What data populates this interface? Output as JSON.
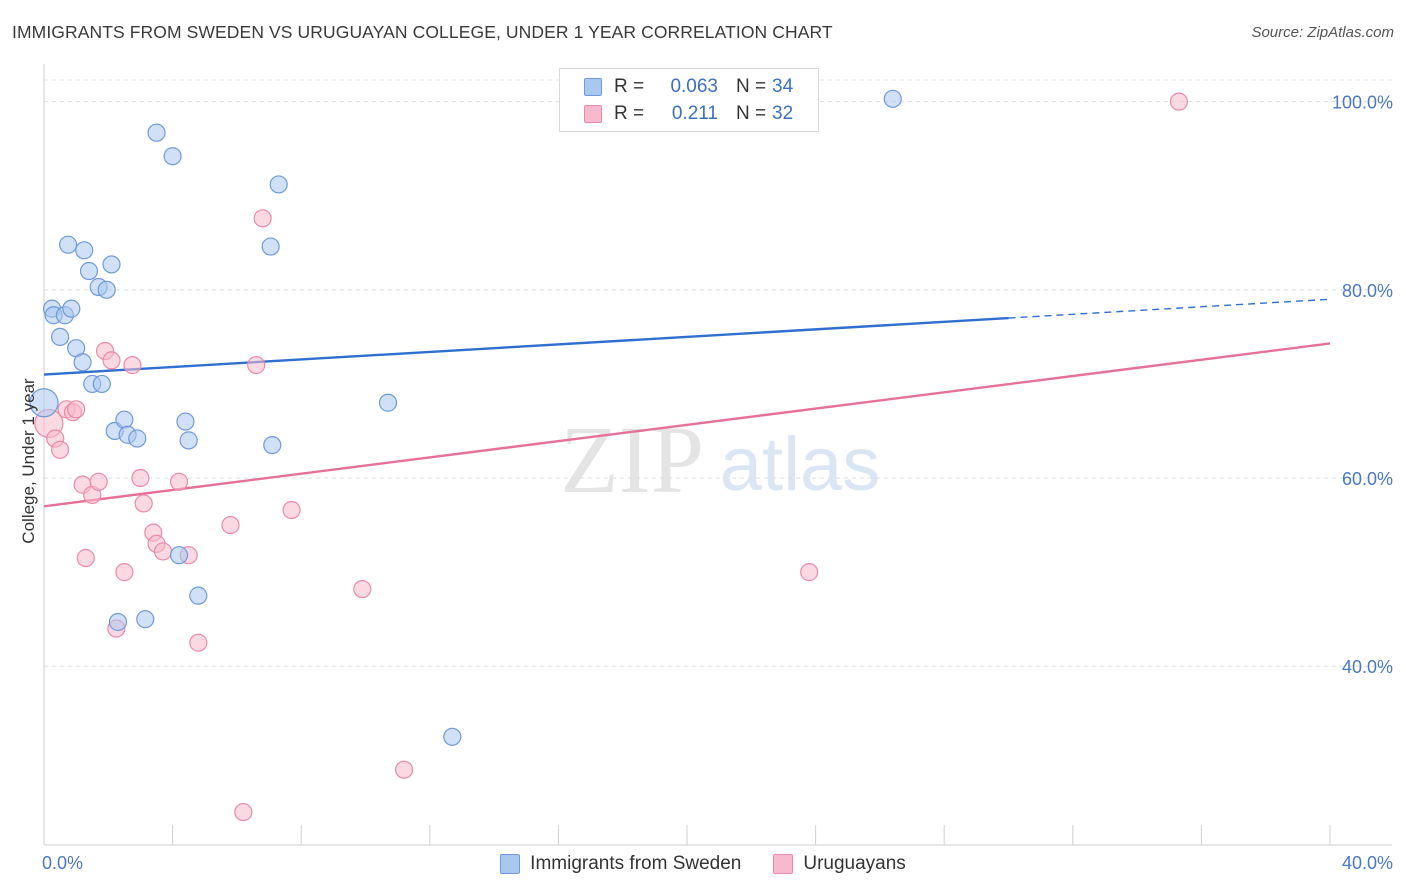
{
  "header": {
    "title": "IMMIGRANTS FROM SWEDEN VS URUGUAYAN COLLEGE, UNDER 1 YEAR CORRELATION CHART",
    "source": "Source: ZipAtlas.com"
  },
  "watermark": {
    "zip": "ZIP",
    "atlas": "atlas"
  },
  "legend": {
    "rows": [
      {
        "r_label": "R =",
        "r_value": "0.063",
        "n_label": "N =",
        "n_value": "34",
        "color": "#a9c8f0",
        "border": "#6f9ad8"
      },
      {
        "r_label": "R =",
        "r_value": "0.211",
        "n_label": "N =",
        "n_value": "32",
        "color": "#f7b9cc",
        "border": "#e98aa8"
      }
    ]
  },
  "chart_data": {
    "type": "scatter",
    "title": "IMMIGRANTS FROM SWEDEN VS URUGUAYAN COLLEGE, UNDER 1 YEAR CORRELATION CHART",
    "xlabel": "",
    "ylabel": "College, Under 1 year",
    "xlim": [
      0,
      40
    ],
    "ylim": [
      21,
      104
    ],
    "x_tick_labels": [
      {
        "value": 0,
        "label": "0.0%"
      },
      {
        "value": 40,
        "label": "40.0%"
      }
    ],
    "y_tick_labels": [
      {
        "value": 40,
        "label": "40.0%"
      },
      {
        "value": 60,
        "label": "60.0%"
      },
      {
        "value": 80,
        "label": "80.0%"
      },
      {
        "value": 100,
        "label": "100.0%"
      }
    ],
    "y_gridlines": [
      40,
      60,
      80,
      100
    ],
    "x_minor_ticks": [
      4,
      8,
      12,
      16,
      20,
      24,
      28,
      32,
      36,
      40
    ],
    "series": [
      {
        "name": "Immigrants from Sweden",
        "color": "#a9c8f0",
        "stroke": "#6f9ad8",
        "points": [
          [
            0.0,
            68.0
          ],
          [
            0.25,
            78.0
          ],
          [
            0.3,
            77.3
          ],
          [
            0.5,
            75.0
          ],
          [
            0.65,
            77.3
          ],
          [
            0.85,
            78.0
          ],
          [
            0.75,
            84.8
          ],
          [
            1.25,
            84.2
          ],
          [
            1.4,
            82.0
          ],
          [
            1.7,
            80.3
          ],
          [
            1.95,
            80.0
          ],
          [
            2.1,
            82.7
          ],
          [
            1.0,
            73.8
          ],
          [
            1.2,
            72.3
          ],
          [
            1.5,
            70.0
          ],
          [
            1.8,
            70.0
          ],
          [
            2.2,
            65.0
          ],
          [
            2.5,
            66.2
          ],
          [
            2.6,
            64.6
          ],
          [
            2.9,
            64.2
          ],
          [
            3.5,
            96.7
          ],
          [
            4.0,
            94.2
          ],
          [
            4.4,
            66.0
          ],
          [
            4.5,
            64.0
          ],
          [
            4.2,
            51.8
          ],
          [
            4.8,
            47.5
          ],
          [
            2.3,
            44.7
          ],
          [
            3.15,
            45.0
          ],
          [
            7.3,
            91.2
          ],
          [
            7.05,
            84.6
          ],
          [
            7.1,
            63.5
          ],
          [
            10.7,
            68.0
          ],
          [
            12.7,
            32.5
          ],
          [
            26.4,
            100.3
          ]
        ],
        "trend": {
          "x": [
            0,
            30
          ],
          "y": [
            71.0,
            77.0
          ],
          "dashed_to": [
            40,
            79.0
          ]
        }
      },
      {
        "name": "Uruguayans",
        "color": "#f7b9cc",
        "stroke": "#e98aa8",
        "points": [
          [
            0.15,
            65.8
          ],
          [
            0.35,
            64.2
          ],
          [
            0.5,
            63.0
          ],
          [
            0.7,
            67.3
          ],
          [
            0.9,
            67.0
          ],
          [
            1.0,
            67.3
          ],
          [
            1.2,
            59.3
          ],
          [
            1.5,
            58.2
          ],
          [
            1.7,
            59.6
          ],
          [
            1.3,
            51.5
          ],
          [
            1.9,
            73.5
          ],
          [
            2.1,
            72.5
          ],
          [
            2.5,
            50.0
          ],
          [
            2.75,
            72.0
          ],
          [
            3.0,
            60.0
          ],
          [
            3.1,
            57.3
          ],
          [
            3.4,
            54.2
          ],
          [
            3.5,
            53.0
          ],
          [
            3.7,
            52.2
          ],
          [
            4.2,
            59.6
          ],
          [
            4.5,
            51.8
          ],
          [
            4.8,
            42.5
          ],
          [
            2.25,
            44.0
          ],
          [
            5.8,
            55.0
          ],
          [
            6.6,
            72.0
          ],
          [
            6.8,
            87.6
          ],
          [
            7.7,
            56.6
          ],
          [
            9.9,
            48.2
          ],
          [
            11.2,
            29.0
          ],
          [
            6.2,
            24.5
          ],
          [
            23.8,
            50.0
          ],
          [
            35.3,
            100.0
          ]
        ],
        "trend": {
          "x": [
            0,
            40
          ],
          "y": [
            57.0,
            74.3
          ]
        }
      }
    ]
  },
  "bottom_legend": {
    "items": [
      {
        "label": "Immigrants from Sweden",
        "color": "#a9c8f0",
        "border": "#6f9ad8"
      },
      {
        "label": "Uruguayans",
        "color": "#f7b9cc",
        "border": "#e98aa8"
      }
    ]
  }
}
